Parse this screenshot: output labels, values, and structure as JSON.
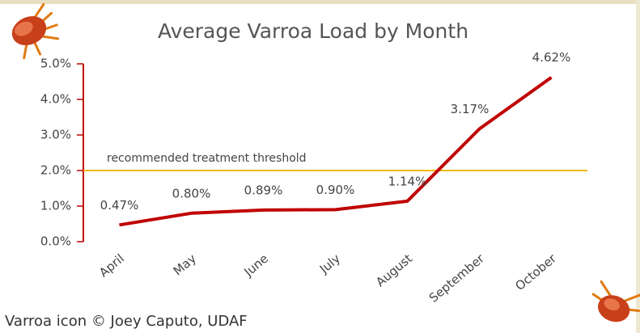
{
  "chart_data": {
    "type": "line",
    "title": "Average Varroa Load by Month",
    "categories": [
      "April",
      "May",
      "June",
      "July",
      "August",
      "September",
      "October"
    ],
    "series": [
      {
        "color": "#c00000",
        "values": [
          0.47,
          0.8,
          0.89,
          0.9,
          1.14,
          3.17,
          4.62
        ],
        "value_labels": [
          "0.47%",
          "0.80%",
          "0.89%",
          "0.90%",
          "1.14%",
          "3.17%",
          "4.62%"
        ]
      }
    ],
    "ylim": [
      0,
      5
    ],
    "yticks": [
      {
        "value": 0,
        "label": "0.0%"
      },
      {
        "value": 1,
        "label": "1.0%"
      },
      {
        "value": 2,
        "label": "2.0%"
      },
      {
        "value": 3,
        "label": "3.0%"
      },
      {
        "value": 4,
        "label": "4.0%"
      },
      {
        "value": 5,
        "label": "5.0%"
      }
    ],
    "axis_color": "#c00000",
    "threshold": {
      "value": 2,
      "label": "recommended treatment threshold",
      "color": "#f5b800"
    },
    "credit": "Varroa icon © Joey Caputo, UDAF"
  }
}
